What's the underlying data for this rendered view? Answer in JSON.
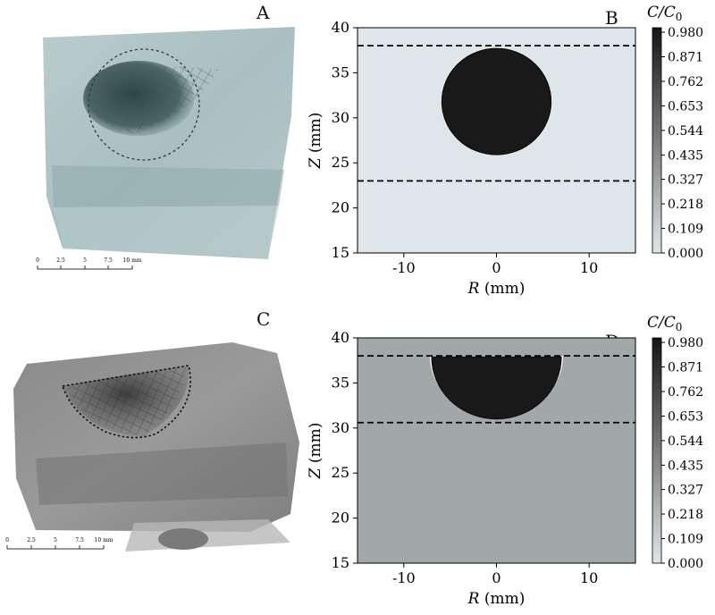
{
  "panels": [
    {
      "id": "A",
      "letter": "A",
      "kind": "photo",
      "scale": {
        "ticks": [
          "0",
          "2.5",
          "5",
          "7.5",
          "10 mm"
        ]
      }
    },
    {
      "id": "B",
      "letter": "B",
      "kind": "plot"
    },
    {
      "id": "C",
      "letter": "C",
      "kind": "photo",
      "scale": {
        "ticks": [
          "0",
          "2.5",
          "5",
          "7.5",
          "10 mm"
        ]
      }
    },
    {
      "id": "D",
      "letter": "D",
      "kind": "plot"
    }
  ],
  "chart_data": [
    {
      "panel": "B",
      "type": "heatmap",
      "xlabel_var": "R",
      "xlabel_unit": " (mm)",
      "ylabel_var": "Z",
      "ylabel_unit": " (mm)",
      "xlim": [
        -15,
        15
      ],
      "ylim": [
        15,
        40
      ],
      "xticks": [
        -10,
        0,
        10
      ],
      "xtick_labels": [
        "-10",
        "0",
        "10"
      ],
      "yticks": [
        15,
        20,
        25,
        30,
        35,
        40
      ],
      "ytick_labels": [
        "15",
        "20",
        "25",
        "30",
        "35",
        "40"
      ],
      "dashed_lines_z": [
        38,
        23
      ],
      "region": {
        "shape": "sphere",
        "center_r": 0,
        "center_z": 31.8,
        "radius": 5.9
      },
      "background_value": 0.0,
      "region_value": 0.98,
      "colorbar": {
        "title_var": "C/C",
        "title_sub": "0",
        "ticks": [
          "0.980",
          "0.871",
          "0.762",
          "0.653",
          "0.544",
          "0.435",
          "0.327",
          "0.218",
          "0.109",
          "0.000"
        ]
      }
    },
    {
      "panel": "D",
      "type": "heatmap",
      "xlabel_var": "R",
      "xlabel_unit": " (mm)",
      "ylabel_var": "Z",
      "ylabel_unit": " (mm)",
      "xlim": [
        -15,
        15
      ],
      "ylim": [
        15,
        40
      ],
      "xticks": [
        -10,
        0,
        10
      ],
      "xtick_labels": [
        "-10",
        "0",
        "10"
      ],
      "yticks": [
        15,
        20,
        25,
        30,
        35,
        40
      ],
      "ytick_labels": [
        "15",
        "20",
        "25",
        "30",
        "35",
        "40"
      ],
      "dashed_lines_z": [
        38,
        30.6
      ],
      "region": {
        "shape": "hemisphere",
        "center_r": 0,
        "top_z": 37.9,
        "bottom_z": 31,
        "radius": 7
      },
      "background_value": 0.3,
      "region_value": 0.98,
      "colorbar": {
        "title_var": "C/C",
        "title_sub": "0",
        "ticks": [
          "0.980",
          "0.871",
          "0.762",
          "0.653",
          "0.544",
          "0.435",
          "0.327",
          "0.218",
          "0.109",
          "0.000"
        ]
      }
    }
  ]
}
